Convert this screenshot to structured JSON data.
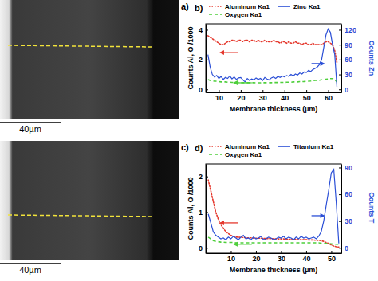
{
  "images": [
    {
      "label": "a)",
      "scale_bar": "40µm"
    },
    {
      "label": "c)",
      "scale_bar": "40µm"
    }
  ],
  "chart_data": [
    {
      "type": "line",
      "title": "b)",
      "x_label": "Membrane thickness (µm)",
      "y_label": "Counts Al, O /1000",
      "y2_label": "Counts Zn",
      "x": [
        5,
        6,
        7,
        8,
        9,
        10,
        11,
        12,
        13,
        14,
        15,
        16,
        17,
        18,
        19,
        20,
        21,
        22,
        23,
        24,
        25,
        26,
        27,
        28,
        29,
        30,
        31,
        32,
        33,
        34,
        35,
        36,
        37,
        38,
        39,
        40,
        41,
        42,
        43,
        44,
        45,
        46,
        47,
        48,
        49,
        50,
        51,
        52,
        53,
        54,
        55,
        56,
        57,
        58,
        59,
        60,
        61,
        62,
        63,
        64
      ],
      "xlim": [
        4,
        66
      ],
      "xticks": [
        10,
        20,
        30,
        40,
        50,
        60
      ],
      "ylim": [
        -0.2,
        4.4
      ],
      "yticks": [
        0,
        2,
        4
      ],
      "y2lim": [
        -6,
        132
      ],
      "y2ticks": [
        0,
        30,
        60,
        90,
        120
      ],
      "series": [
        {
          "name": "Aluminum Ka1",
          "color": "#e5392e",
          "line_style": "dotted",
          "values": [
            3.6,
            3.5,
            3.4,
            3.3,
            3.2,
            3.1,
            3.0,
            3.0,
            3.1,
            3.2,
            3.2,
            3.3,
            3.3,
            3.2,
            3.3,
            3.3,
            3.2,
            3.3,
            3.3,
            3.2,
            3.3,
            3.3,
            3.2,
            3.3,
            3.2,
            3.2,
            3.3,
            3.2,
            3.2,
            3.2,
            3.3,
            3.2,
            3.2,
            3.1,
            3.2,
            3.2,
            3.1,
            3.2,
            3.1,
            3.1,
            3.2,
            3.1,
            3.1,
            3.0,
            3.1,
            3.1,
            3.0,
            3.0,
            3.1,
            3.0,
            3.0,
            3.0,
            3.0,
            3.1,
            3.2,
            3.2,
            3.1,
            3.0,
            2.6,
            1.8
          ]
        },
        {
          "name": "Oxygen Ka1",
          "color": "#4fcf3c",
          "line_style": "dashed",
          "values": [
            0.65,
            0.6,
            0.58,
            0.55,
            0.55,
            0.52,
            0.5,
            0.5,
            0.5,
            0.48,
            0.48,
            0.47,
            0.47,
            0.46,
            0.46,
            0.45,
            0.45,
            0.45,
            0.45,
            0.45,
            0.45,
            0.45,
            0.44,
            0.44,
            0.44,
            0.45,
            0.45,
            0.45,
            0.45,
            0.45,
            0.46,
            0.46,
            0.46,
            0.47,
            0.47,
            0.47,
            0.48,
            0.48,
            0.48,
            0.5,
            0.5,
            0.5,
            0.52,
            0.52,
            0.53,
            0.55,
            0.55,
            0.56,
            0.58,
            0.6,
            0.6,
            0.62,
            0.64,
            0.66,
            0.68,
            0.7,
            0.72,
            0.72,
            0.65,
            0.5
          ]
        },
        {
          "name": "Zinc Ka1",
          "color": "#2b4fd6",
          "line_style": "solid",
          "axis": "y2",
          "values": [
            70,
            45,
            30,
            25,
            28,
            22,
            26,
            20,
            24,
            22,
            27,
            21,
            25,
            20,
            23,
            24,
            19,
            15,
            22,
            18,
            21,
            19,
            23,
            20,
            22,
            18,
            24,
            21,
            19,
            23,
            25,
            22,
            26,
            24,
            27,
            25,
            28,
            26,
            30,
            27,
            31,
            29,
            33,
            31,
            35,
            34,
            38,
            36,
            40,
            42,
            45,
            50,
            60,
            85,
            110,
            122,
            115,
            90,
            70,
            5
          ]
        }
      ]
    },
    {
      "type": "line",
      "title": "d)",
      "x_label": "Membrane thickness (µm)",
      "y_label": "Counts Al, O /1000",
      "y2_label": "Counts Ti",
      "x": [
        1,
        2,
        3,
        4,
        5,
        6,
        7,
        8,
        9,
        10,
        11,
        12,
        13,
        14,
        15,
        16,
        17,
        18,
        19,
        20,
        21,
        22,
        23,
        24,
        25,
        26,
        27,
        28,
        29,
        30,
        31,
        32,
        33,
        34,
        35,
        36,
        37,
        38,
        39,
        40,
        41,
        42,
        43,
        44,
        45,
        46,
        47,
        48,
        49,
        50,
        51,
        52,
        53
      ],
      "xlim": [
        0,
        54
      ],
      "xticks": [
        10,
        20,
        30,
        40,
        50
      ],
      "ylim": [
        -0.15,
        2.35
      ],
      "yticks": [
        0,
        1,
        2
      ],
      "y2lim": [
        -6,
        94
      ],
      "y2ticks": [
        0,
        30,
        60,
        90
      ],
      "series": [
        {
          "name": "Aluminum Ka1",
          "color": "#e5392e",
          "line_style": "dotted",
          "values": [
            1.9,
            1.6,
            1.3,
            1.0,
            0.8,
            0.65,
            0.55,
            0.45,
            0.4,
            0.35,
            0.32,
            0.3,
            0.3,
            0.29,
            0.29,
            0.28,
            0.28,
            0.28,
            0.27,
            0.27,
            0.27,
            0.27,
            0.26,
            0.26,
            0.26,
            0.26,
            0.25,
            0.25,
            0.25,
            0.25,
            0.25,
            0.24,
            0.24,
            0.24,
            0.24,
            0.24,
            0.23,
            0.23,
            0.23,
            0.23,
            0.22,
            0.22,
            0.22,
            0.21,
            0.21,
            0.2,
            0.18,
            0.15,
            0.12,
            0.08,
            0.05,
            0.03,
            0.02
          ]
        },
        {
          "name": "Oxygen Ka1",
          "color": "#4fcf3c",
          "line_style": "dashed",
          "values": [
            0.3,
            0.25,
            0.2,
            0.18,
            0.17,
            0.16,
            0.16,
            0.15,
            0.15,
            0.15,
            0.15,
            0.14,
            0.14,
            0.14,
            0.14,
            0.14,
            0.14,
            0.14,
            0.14,
            0.14,
            0.14,
            0.14,
            0.14,
            0.14,
            0.14,
            0.14,
            0.14,
            0.14,
            0.14,
            0.14,
            0.14,
            0.14,
            0.14,
            0.14,
            0.14,
            0.14,
            0.14,
            0.14,
            0.14,
            0.14,
            0.14,
            0.14,
            0.14,
            0.14,
            0.14,
            0.13,
            0.13,
            0.12,
            0.12,
            0.11,
            0.1,
            0.1,
            0.1
          ]
        },
        {
          "name": "Titanium Ka1",
          "color": "#2b4fd6",
          "line_style": "solid",
          "axis": "y2",
          "values": [
            38,
            28,
            18,
            14,
            12,
            10,
            11,
            9,
            12,
            10,
            13,
            11,
            9,
            12,
            14,
            10,
            11,
            9,
            12,
            10,
            11,
            13,
            9,
            10,
            12,
            11,
            9,
            10,
            12,
            11,
            13,
            10,
            12,
            11,
            9,
            12,
            10,
            13,
            11,
            12,
            10,
            11,
            12,
            10,
            13,
            18,
            30,
            48,
            65,
            84,
            88,
            50,
            5
          ]
        }
      ]
    }
  ]
}
